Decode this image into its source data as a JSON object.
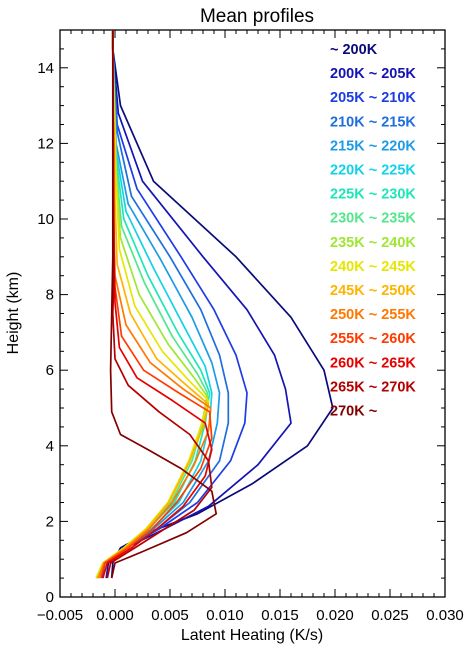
{
  "chart_data": {
    "type": "line",
    "title": "Mean profiles",
    "xlabel": "Latent Heating (K/s)",
    "ylabel": "Height (km)",
    "xlim": [
      -0.005,
      0.03
    ],
    "ylim": [
      0,
      15
    ],
    "x_ticks": [
      "−0.005",
      "0.000",
      "0.005",
      "0.010",
      "0.015",
      "0.020",
      "0.025",
      "0.030"
    ],
    "x_tick_values": [
      -0.005,
      0,
      0.005,
      0.01,
      0.015,
      0.02,
      0.025,
      0.03
    ],
    "y_ticks": [
      "0",
      "2",
      "4",
      "6",
      "8",
      "10",
      "12",
      "14"
    ],
    "y_tick_values": [
      0,
      2,
      4,
      6,
      8,
      10,
      12,
      14
    ],
    "grid": false,
    "legend_position": "top-right",
    "series": [
      {
        "name": "~ 200K",
        "color": "#0a0a7a",
        "points": [
          [
            -0.0003,
            0.5
          ],
          [
            -0.0002,
            0.9
          ],
          [
            0.0005,
            1.3
          ],
          [
            0.003,
            1.7
          ],
          [
            0.0075,
            2.2
          ],
          [
            0.0125,
            3.0
          ],
          [
            0.0175,
            4.0
          ],
          [
            0.0198,
            5.0
          ],
          [
            0.019,
            6.0
          ],
          [
            0.016,
            7.4
          ],
          [
            0.011,
            9.0
          ],
          [
            0.0035,
            11.0
          ],
          [
            0.0005,
            13.0
          ],
          [
            -0.0002,
            14.5
          ],
          [
            -0.0002,
            15.0
          ]
        ]
      },
      {
        "name": "200K ~ 205K",
        "color": "#1414b4",
        "points": [
          [
            -0.0008,
            0.5
          ],
          [
            -0.0006,
            0.9
          ],
          [
            0.001,
            1.3
          ],
          [
            0.0045,
            1.8
          ],
          [
            0.0085,
            2.4
          ],
          [
            0.013,
            3.5
          ],
          [
            0.016,
            4.6
          ],
          [
            0.0155,
            5.5
          ],
          [
            0.0145,
            6.4
          ],
          [
            0.012,
            7.6
          ],
          [
            0.008,
            9.0
          ],
          [
            0.0025,
            11.0
          ],
          [
            0.0003,
            12.8
          ],
          [
            -0.0002,
            14.5
          ],
          [
            -0.0002,
            15.0
          ]
        ]
      },
      {
        "name": "205K ~ 210K",
        "color": "#1e3ce6",
        "points": [
          [
            -0.0012,
            0.5
          ],
          [
            -0.0009,
            0.9
          ],
          [
            0.001,
            1.3
          ],
          [
            0.004,
            1.8
          ],
          [
            0.0075,
            2.5
          ],
          [
            0.0105,
            3.6
          ],
          [
            0.0118,
            4.6
          ],
          [
            0.012,
            5.4
          ],
          [
            0.011,
            6.4
          ],
          [
            0.009,
            7.6
          ],
          [
            0.006,
            9.0
          ],
          [
            0.002,
            10.8
          ],
          [
            0.0002,
            12.5
          ],
          [
            -0.0002,
            14.5
          ],
          [
            -0.0002,
            15.0
          ]
        ]
      },
      {
        "name": "210K ~ 215K",
        "color": "#1e6edc",
        "points": [
          [
            -0.0015,
            0.5
          ],
          [
            -0.001,
            0.9
          ],
          [
            0.001,
            1.3
          ],
          [
            0.0038,
            1.8
          ],
          [
            0.0068,
            2.5
          ],
          [
            0.0095,
            3.6
          ],
          [
            0.0103,
            4.6
          ],
          [
            0.0103,
            5.4
          ],
          [
            0.0095,
            6.4
          ],
          [
            0.0078,
            7.6
          ],
          [
            0.005,
            9.0
          ],
          [
            0.0015,
            10.6
          ],
          [
            0.0002,
            12.3
          ],
          [
            -0.0002,
            14.5
          ],
          [
            -0.0002,
            15.0
          ]
        ]
      },
      {
        "name": "215K ~ 220K",
        "color": "#1e9be6",
        "points": [
          [
            -0.0016,
            0.5
          ],
          [
            -0.001,
            0.9
          ],
          [
            0.001,
            1.3
          ],
          [
            0.0035,
            1.8
          ],
          [
            0.0062,
            2.5
          ],
          [
            0.0085,
            3.6
          ],
          [
            0.0093,
            4.6
          ],
          [
            0.0095,
            5.4
          ],
          [
            0.0088,
            6.2
          ],
          [
            0.007,
            7.4
          ],
          [
            0.0042,
            8.9
          ],
          [
            0.0012,
            10.4
          ],
          [
            0.0001,
            12.0
          ],
          [
            -0.0002,
            14.5
          ],
          [
            -0.0002,
            15.0
          ]
        ]
      },
      {
        "name": "220K ~ 225K",
        "color": "#14d2e6",
        "points": [
          [
            -0.0017,
            0.5
          ],
          [
            -0.0011,
            0.9
          ],
          [
            0.001,
            1.3
          ],
          [
            0.0033,
            1.8
          ],
          [
            0.0058,
            2.5
          ],
          [
            0.0078,
            3.6
          ],
          [
            0.0086,
            4.6
          ],
          [
            0.0088,
            5.4
          ],
          [
            0.0082,
            6.1
          ],
          [
            0.0062,
            7.2
          ],
          [
            0.0035,
            8.7
          ],
          [
            0.001,
            10.2
          ],
          [
            0.0001,
            11.8
          ],
          [
            -0.0002,
            14.5
          ],
          [
            -0.0002,
            15.0
          ]
        ]
      },
      {
        "name": "225K ~ 230K",
        "color": "#1ee6b9",
        "points": [
          [
            -0.0017,
            0.5
          ],
          [
            -0.0011,
            0.9
          ],
          [
            0.0009,
            1.3
          ],
          [
            0.003,
            1.8
          ],
          [
            0.0054,
            2.5
          ],
          [
            0.0073,
            3.6
          ],
          [
            0.0082,
            4.6
          ],
          [
            0.0086,
            5.4
          ],
          [
            0.0078,
            6.0
          ],
          [
            0.0057,
            7.0
          ],
          [
            0.003,
            8.5
          ],
          [
            0.0008,
            10.0
          ],
          [
            0.0001,
            11.6
          ],
          [
            -0.0002,
            14.5
          ],
          [
            -0.0002,
            15.0
          ]
        ]
      },
      {
        "name": "230K ~ 235K",
        "color": "#55e68c",
        "points": [
          [
            -0.0017,
            0.5
          ],
          [
            -0.0011,
            0.9
          ],
          [
            0.0009,
            1.3
          ],
          [
            0.0029,
            1.8
          ],
          [
            0.0051,
            2.5
          ],
          [
            0.007,
            3.6
          ],
          [
            0.008,
            4.6
          ],
          [
            0.0084,
            5.4
          ],
          [
            0.0075,
            5.9
          ],
          [
            0.0052,
            6.9
          ],
          [
            0.0027,
            8.3
          ],
          [
            0.0006,
            9.8
          ],
          [
            0.0001,
            11.4
          ],
          [
            -0.0002,
            14.5
          ],
          [
            -0.0002,
            15.0
          ]
        ]
      },
      {
        "name": "235K ~ 240K",
        "color": "#a0e632",
        "points": [
          [
            -0.0017,
            0.5
          ],
          [
            -0.0011,
            0.9
          ],
          [
            0.0008,
            1.3
          ],
          [
            0.0028,
            1.8
          ],
          [
            0.0049,
            2.5
          ],
          [
            0.0068,
            3.6
          ],
          [
            0.0079,
            4.6
          ],
          [
            0.0084,
            5.3
          ],
          [
            0.0072,
            5.8
          ],
          [
            0.0048,
            6.7
          ],
          [
            0.0022,
            8.0
          ],
          [
            0.0005,
            9.5
          ],
          [
            0.0001,
            11.2
          ],
          [
            -0.0002,
            14.5
          ],
          [
            -0.0002,
            15.0
          ]
        ]
      },
      {
        "name": "240K ~ 245K",
        "color": "#e6e600",
        "points": [
          [
            -0.0017,
            0.5
          ],
          [
            -0.0011,
            0.9
          ],
          [
            0.0008,
            1.3
          ],
          [
            0.0028,
            1.8
          ],
          [
            0.0048,
            2.5
          ],
          [
            0.0067,
            3.6
          ],
          [
            0.0079,
            4.6
          ],
          [
            0.0085,
            5.2
          ],
          [
            0.0068,
            5.7
          ],
          [
            0.0043,
            6.5
          ],
          [
            0.0018,
            7.7
          ],
          [
            0.0004,
            9.2
          ],
          [
            0.0001,
            11.0
          ],
          [
            -0.0002,
            14.5
          ],
          [
            -0.0002,
            15.0
          ]
        ]
      },
      {
        "name": "245K ~ 250K",
        "color": "#ffb400",
        "points": [
          [
            -0.0016,
            0.5
          ],
          [
            -0.001,
            0.9
          ],
          [
            0.0009,
            1.3
          ],
          [
            0.0029,
            1.8
          ],
          [
            0.0049,
            2.5
          ],
          [
            0.0068,
            3.6
          ],
          [
            0.008,
            4.5
          ],
          [
            0.0085,
            5.1
          ],
          [
            0.0065,
            5.6
          ],
          [
            0.0038,
            6.3
          ],
          [
            0.0014,
            7.5
          ],
          [
            0.0002,
            8.8
          ],
          [
            0.0,
            10.5
          ],
          [
            -0.0002,
            14.5
          ],
          [
            -0.0002,
            15.0
          ]
        ]
      },
      {
        "name": "250K ~ 255K",
        "color": "#ff7800",
        "points": [
          [
            -0.0015,
            0.5
          ],
          [
            -0.001,
            0.9
          ],
          [
            0.001,
            1.3
          ],
          [
            0.0031,
            1.8
          ],
          [
            0.0052,
            2.5
          ],
          [
            0.0072,
            3.5
          ],
          [
            0.0085,
            4.4
          ],
          [
            0.0087,
            5.0
          ],
          [
            0.0062,
            5.5
          ],
          [
            0.0032,
            6.2
          ],
          [
            0.001,
            7.2
          ],
          [
            0.0,
            8.5
          ],
          [
            -0.0001,
            10.0
          ],
          [
            -0.0002,
            14.5
          ],
          [
            -0.0002,
            15.0
          ]
        ]
      },
      {
        "name": "255K ~ 260K",
        "color": "#ff3c00",
        "points": [
          [
            -0.0013,
            0.5
          ],
          [
            -0.0009,
            0.9
          ],
          [
            0.0012,
            1.3
          ],
          [
            0.0034,
            1.8
          ],
          [
            0.0056,
            2.5
          ],
          [
            0.0078,
            3.4
          ],
          [
            0.0088,
            4.2
          ],
          [
            0.0086,
            4.9
          ],
          [
            0.0058,
            5.4
          ],
          [
            0.0026,
            6.0
          ],
          [
            0.0006,
            6.9
          ],
          [
            0.0,
            8.2
          ],
          [
            -0.0001,
            9.5
          ],
          [
            -0.0002,
            14.5
          ],
          [
            -0.0002,
            15.0
          ]
        ]
      },
      {
        "name": "260K ~ 265K",
        "color": "#e60000",
        "points": [
          [
            -0.0011,
            0.5
          ],
          [
            -0.0007,
            0.9
          ],
          [
            0.0015,
            1.3
          ],
          [
            0.0038,
            1.8
          ],
          [
            0.0062,
            2.4
          ],
          [
            0.0082,
            3.2
          ],
          [
            0.0088,
            3.9
          ],
          [
            0.0082,
            4.6
          ],
          [
            0.0052,
            5.2
          ],
          [
            0.002,
            5.8
          ],
          [
            0.0004,
            6.6
          ],
          [
            0.0,
            7.8
          ],
          [
            -0.0001,
            9.0
          ],
          [
            -0.0002,
            14.5
          ],
          [
            -0.0002,
            15.0
          ]
        ]
      },
      {
        "name": "265K ~ 270K",
        "color": "#b40000",
        "points": [
          [
            -0.0007,
            0.5
          ],
          [
            -0.0004,
            0.9
          ],
          [
            0.0018,
            1.3
          ],
          [
            0.0045,
            1.8
          ],
          [
            0.0072,
            2.3
          ],
          [
            0.0088,
            2.9
          ],
          [
            0.0085,
            3.6
          ],
          [
            0.0068,
            4.3
          ],
          [
            0.004,
            4.9
          ],
          [
            0.0012,
            5.6
          ],
          [
            0.0,
            6.3
          ],
          [
            -0.0002,
            7.5
          ],
          [
            -0.0001,
            8.5
          ],
          [
            -0.0002,
            14.5
          ],
          [
            -0.0002,
            15.0
          ]
        ]
      },
      {
        "name": "270K ~",
        "color": "#820000",
        "points": [
          [
            -0.0003,
            0.5
          ],
          [
            0.0,
            0.9
          ],
          [
            0.0025,
            1.2
          ],
          [
            0.0065,
            1.7
          ],
          [
            0.0092,
            2.2
          ],
          [
            0.0088,
            2.8
          ],
          [
            0.006,
            3.4
          ],
          [
            0.003,
            3.9
          ],
          [
            0.0005,
            4.3
          ],
          [
            -0.0003,
            4.9
          ],
          [
            -0.0004,
            6.0
          ],
          [
            -0.0003,
            7.5
          ],
          [
            -0.0002,
            9.0
          ],
          [
            -0.0002,
            14.5
          ],
          [
            -0.0002,
            15.0
          ]
        ]
      }
    ]
  }
}
